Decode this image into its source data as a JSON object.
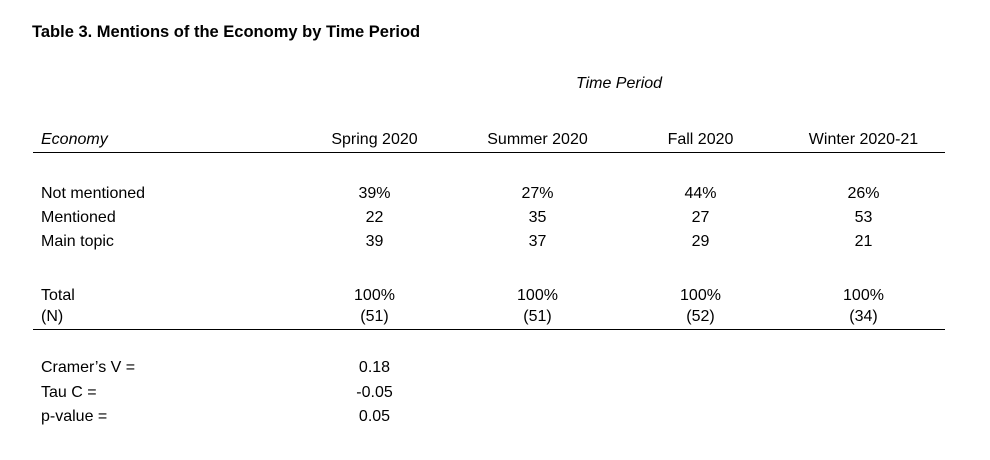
{
  "page": {
    "title": "Table 3. Mentions of the Economy by Time Period"
  },
  "table": {
    "group_header": "Time Period",
    "stub_header": "Economy",
    "column_headers": [
      "Spring 2020",
      "Summer 2020",
      "Fall 2020",
      "Winter 2020-21"
    ],
    "rows": [
      {
        "label": "Not mentioned",
        "values": [
          "39%",
          "27%",
          "44%",
          "26%"
        ]
      },
      {
        "label": "Mentioned",
        "values": [
          "22",
          "35",
          "27",
          "53"
        ]
      },
      {
        "label": "Main topic",
        "values": [
          "39",
          "37",
          "29",
          "21"
        ]
      }
    ],
    "totals": [
      {
        "label": "Total",
        "values": [
          "100%",
          "100%",
          "100%",
          "100%"
        ]
      },
      {
        "label": "(N)",
        "values": [
          "(51)",
          "(51)",
          "(52)",
          "(34)"
        ]
      }
    ],
    "stats": [
      {
        "label": "Cramer’s V =",
        "value": "0.18"
      },
      {
        "label": "Tau C =",
        "value": "-0.05"
      },
      {
        "label": "p-value =",
        "value": "0.05"
      }
    ]
  },
  "colors": {
    "text": "#000000",
    "background": "#ffffff",
    "rule": "#000000"
  },
  "chart_data": {
    "type": "table",
    "title": "Table 3. Mentions of the Economy by Time Period",
    "group_header": "Time Period",
    "row_dimension": "Economy",
    "categories": [
      "Spring 2020",
      "Summer 2020",
      "Fall 2020",
      "Winter 2020-21"
    ],
    "series": [
      {
        "name": "Not mentioned",
        "values": [
          39,
          27,
          44,
          26
        ],
        "unit": "%"
      },
      {
        "name": "Mentioned",
        "values": [
          22,
          35,
          27,
          53
        ],
        "unit": "%"
      },
      {
        "name": "Main topic",
        "values": [
          39,
          37,
          29,
          21
        ],
        "unit": "%"
      },
      {
        "name": "Total",
        "values": [
          100,
          100,
          100,
          100
        ],
        "unit": "%"
      },
      {
        "name": "(N)",
        "values": [
          51,
          51,
          52,
          34
        ],
        "unit": "count"
      }
    ],
    "statistics": {
      "cramers_v": 0.18,
      "tau_c": -0.05,
      "p_value": 0.05
    }
  }
}
